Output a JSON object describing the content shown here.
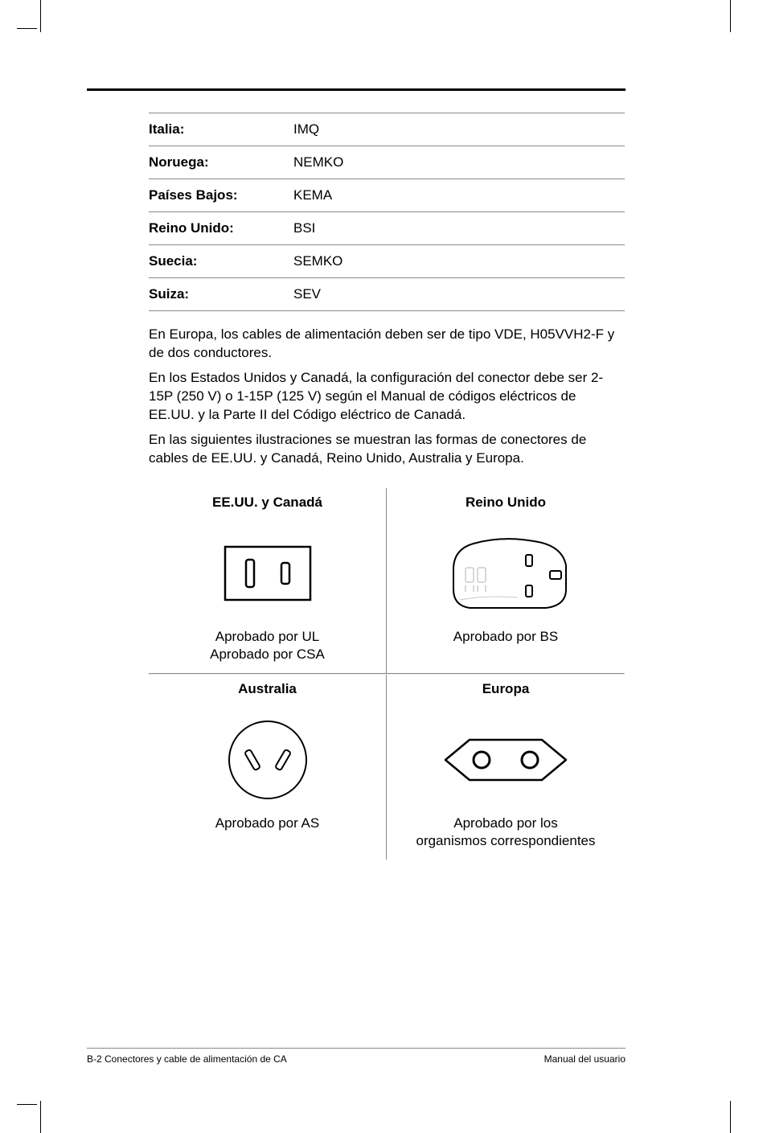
{
  "agency_table": [
    {
      "country": "Italia:",
      "agency": "IMQ"
    },
    {
      "country": "Noruega:",
      "agency": "NEMKO"
    },
    {
      "country": "Países Bajos:",
      "agency": "KEMA"
    },
    {
      "country": "Reino Unido:",
      "agency": "BSI"
    },
    {
      "country": "Suecia:",
      "agency": "SEMKO"
    },
    {
      "country": "Suiza:",
      "agency": "SEV"
    }
  ],
  "paragraphs": [
    "En Europa, los cables de alimentación deben ser de tipo VDE, H05VVH2-F y de dos conductores.",
    "En los Estados Unidos y Canadá, la configuración del conector debe ser 2-15P (250 V) o 1-15P (125 V) según el Manual de códigos eléctricos de EE.UU. y la Parte II del Código eléctrico de Canadá.",
    "En las siguientes ilustraciones se muestran las formas de conectores de cables de EE.UU. y Canadá, Reino Unido, Australia y Europa."
  ],
  "plugs": {
    "us": {
      "heading": "EE.UU. y Canadá",
      "caption_line1": "Aprobado por UL",
      "caption_line2": "Aprobado por CSA"
    },
    "uk": {
      "heading": "Reino Unido",
      "caption": "Aprobado por BS"
    },
    "au": {
      "heading": "Australia",
      "caption": "Aprobado por AS"
    },
    "eu": {
      "heading": "Europa",
      "caption_line1": "Aprobado por los",
      "caption_line2": "organismos correspondientes"
    }
  },
  "footer": {
    "left": "B-2  Conectores y cable de alimentación de CA",
    "right": "Manual del usuario"
  }
}
